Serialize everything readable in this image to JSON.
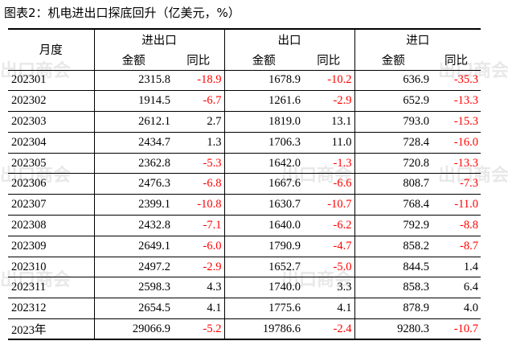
{
  "title": "图表2：机电进出口探底回升（亿美元，%）",
  "header": {
    "month_label": "月度",
    "group_total": "进出口",
    "group_export": "出口",
    "group_import": "进口",
    "amount_label": "金额",
    "yoy_label": "同比"
  },
  "watermark_text": "出口商会",
  "colors": {
    "negative": "#ff0000",
    "positive": "#000000"
  },
  "rows": [
    {
      "month": "202301",
      "total_amt": "2315.8",
      "total_yoy": "-18.9",
      "export_amt": "1678.9",
      "export_yoy": "-10.2",
      "import_amt": "636.9",
      "import_yoy": "-35.3"
    },
    {
      "month": "202302",
      "total_amt": "1914.5",
      "total_yoy": "-6.7",
      "export_amt": "1261.6",
      "export_yoy": "-2.9",
      "import_amt": "652.9",
      "import_yoy": "-13.3"
    },
    {
      "month": "202303",
      "total_amt": "2612.1",
      "total_yoy": "2.7",
      "export_amt": "1819.0",
      "export_yoy": "13.1",
      "import_amt": "793.0",
      "import_yoy": "-15.3"
    },
    {
      "month": "202304",
      "total_amt": "2434.7",
      "total_yoy": "1.3",
      "export_amt": "1706.3",
      "export_yoy": "11.0",
      "import_amt": "728.4",
      "import_yoy": "-16.0"
    },
    {
      "month": "202305",
      "total_amt": "2362.8",
      "total_yoy": "-5.3",
      "export_amt": "1642.0",
      "export_yoy": "-1.3",
      "import_amt": "720.8",
      "import_yoy": "-13.3"
    },
    {
      "month": "202306",
      "total_amt": "2476.3",
      "total_yoy": "-6.8",
      "export_amt": "1667.6",
      "export_yoy": "-6.6",
      "import_amt": "808.7",
      "import_yoy": "-7.3"
    },
    {
      "month": "202307",
      "total_amt": "2399.1",
      "total_yoy": "-10.8",
      "export_amt": "1630.7",
      "export_yoy": "-10.7",
      "import_amt": "768.4",
      "import_yoy": "-11.0"
    },
    {
      "month": "202308",
      "total_amt": "2432.8",
      "total_yoy": "-7.1",
      "export_amt": "1640.0",
      "export_yoy": "-6.2",
      "import_amt": "792.9",
      "import_yoy": "-8.8"
    },
    {
      "month": "202309",
      "total_amt": "2649.1",
      "total_yoy": "-6.0",
      "export_amt": "1790.9",
      "export_yoy": "-4.7",
      "import_amt": "858.2",
      "import_yoy": "-8.7"
    },
    {
      "month": "202310",
      "total_amt": "2497.2",
      "total_yoy": "-2.9",
      "export_amt": "1652.7",
      "export_yoy": "-5.0",
      "import_amt": "844.5",
      "import_yoy": "1.4"
    },
    {
      "month": "202311",
      "total_amt": "2598.3",
      "total_yoy": "4.3",
      "export_amt": "1740.0",
      "export_yoy": "3.3",
      "import_amt": "858.3",
      "import_yoy": "6.4"
    },
    {
      "month": "202312",
      "total_amt": "2654.5",
      "total_yoy": "4.1",
      "export_amt": "1775.6",
      "export_yoy": "4.1",
      "import_amt": "878.9",
      "import_yoy": "4.0"
    },
    {
      "month": "2023年",
      "total_amt": "29066.9",
      "total_yoy": "-5.2",
      "export_amt": "19786.6",
      "export_yoy": "-2.4",
      "import_amt": "9280.3",
      "import_yoy": "-10.7"
    }
  ]
}
